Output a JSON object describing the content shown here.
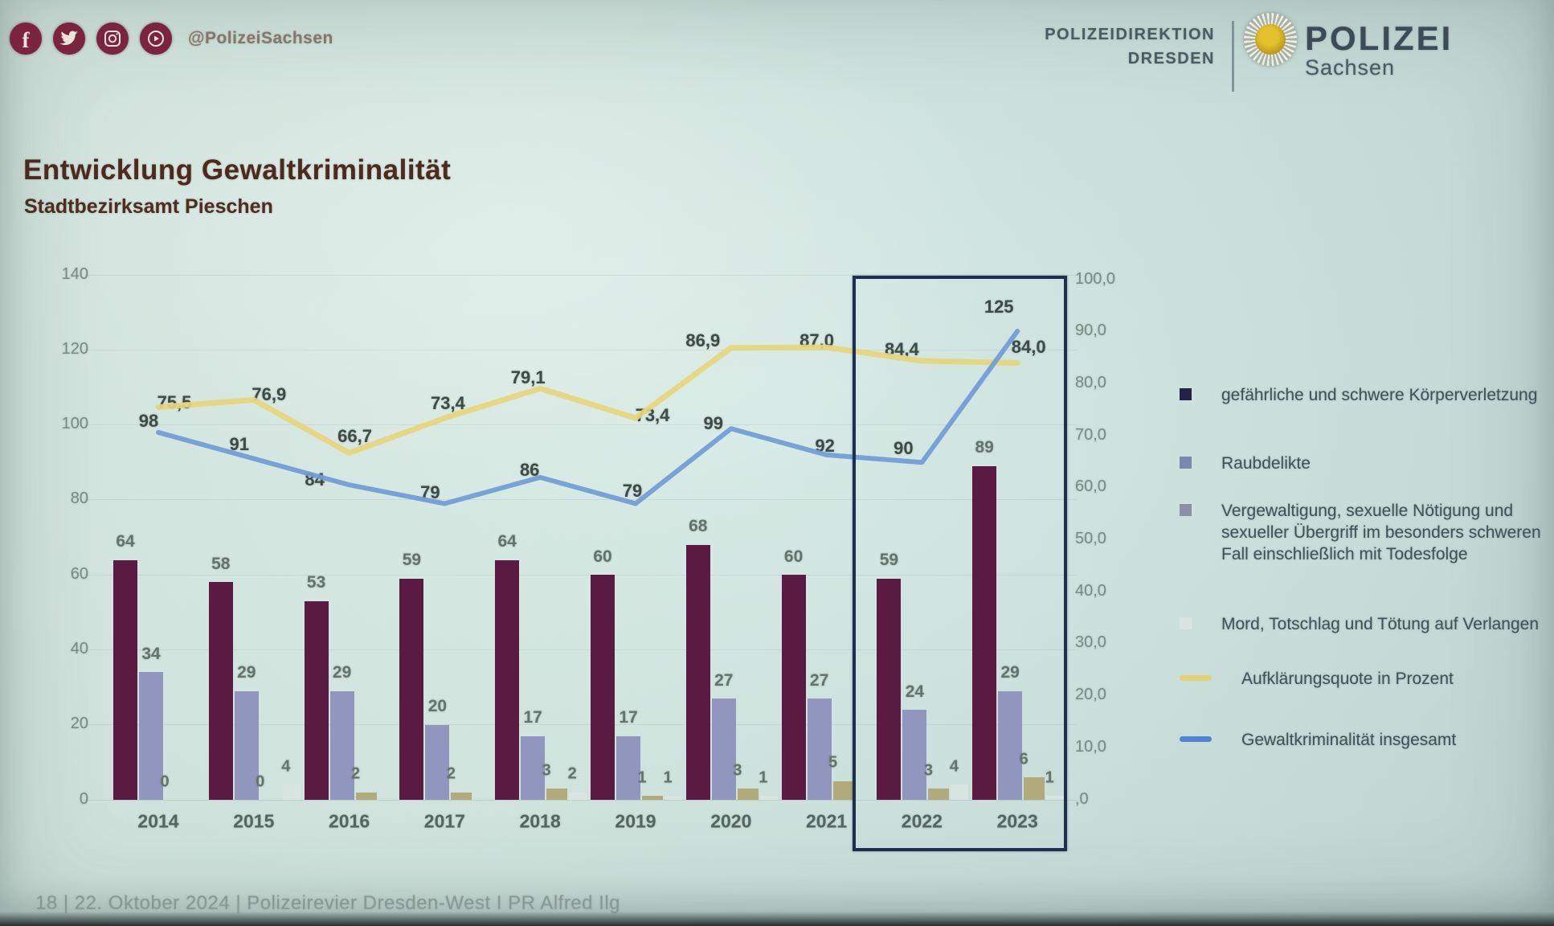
{
  "header": {
    "social_handle": "@PolizeiSachsen",
    "direktion_line1": "POLIZEIDIREKTION",
    "direktion_line2": "DRESDEN",
    "brand_name": "POLIZEI",
    "brand_region": "Sachsen"
  },
  "title": "Entwicklung Gewaltkriminalität",
  "subtitle": "Stadtbezirksamt Pieschen",
  "footer": "18  | 22. Oktober 2024 | Polizeirevier Dresden-West I PR Alfred Ilg",
  "chart_data": {
    "type": "bar+line combo",
    "categories": [
      "2014",
      "2015",
      "2016",
      "2017",
      "2018",
      "2019",
      "2020",
      "2021",
      "2022",
      "2023"
    ],
    "bar_series": [
      {
        "name": "gefährliche und schwere Körperverletzung",
        "color": "#5b1942",
        "values": [
          64,
          58,
          53,
          59,
          64,
          60,
          68,
          60,
          59,
          89
        ],
        "labels": [
          "64",
          "58",
          "53",
          "59",
          "64",
          "60",
          "68",
          "60",
          "59",
          "89"
        ]
      },
      {
        "name": "Raubdelikte",
        "color": "#9096bf",
        "values": [
          34,
          29,
          29,
          20,
          17,
          17,
          27,
          27,
          24,
          29
        ],
        "labels": [
          "34",
          "29",
          "29",
          "20",
          "17",
          "17",
          "27",
          "27",
          "24",
          "29"
        ]
      },
      {
        "name": "Vergewaltigung, sexuelle Nötigung und sexueller Übergriff im besonders schweren Fall einschließlich mit Todesfolge",
        "color": "#b2aa7b",
        "values": [
          0,
          0,
          2,
          2,
          3,
          1,
          3,
          5,
          3,
          6
        ],
        "labels": [
          "0",
          "0",
          "2",
          "2",
          "3",
          "1",
          "3",
          "5",
          "3",
          "6"
        ]
      },
      {
        "name": "Mord, Totschlag und Tötung auf Verlangen",
        "color": "#d8e5e0",
        "values": [
          0,
          4,
          0,
          0,
          2,
          1,
          1,
          0,
          4,
          1
        ],
        "labels": [
          "",
          "4",
          "",
          "",
          "2",
          "1",
          "1",
          "",
          "4",
          "1"
        ]
      }
    ],
    "line_series": [
      {
        "name": "Aufklärungsquote in Prozent",
        "axis": "right",
        "color": "#e7d57a",
        "values": [
          75.5,
          76.9,
          66.7,
          73.4,
          79.1,
          73.4,
          86.9,
          87.0,
          84.4,
          84.0
        ],
        "labels": [
          "75,5",
          "76,9",
          "66,7",
          "73,4",
          "79,1",
          "73,4",
          "86,9",
          "87,0",
          "84,4",
          "84,0"
        ]
      },
      {
        "name": "Gewaltkriminalität insgesamt",
        "axis": "left",
        "color": "#6f9cd8",
        "values": [
          98,
          91,
          84,
          79,
          86,
          79,
          99,
          92,
          90,
          125
        ],
        "labels": [
          "98",
          "91",
          "84",
          "79",
          "86",
          "79",
          "99",
          "92",
          "90",
          "125"
        ]
      }
    ],
    "axis_left": {
      "min": 0,
      "max": 140,
      "step": 20,
      "tick_labels": [
        "0",
        "20",
        "40",
        "60",
        "80",
        "100",
        "120",
        "140"
      ]
    },
    "axis_right": {
      "min": 0,
      "max": 100,
      "step": 10,
      "tick_labels": [
        "100,0",
        "90,0",
        "80,0",
        "70,0",
        "60,0",
        "50,0",
        "40,0",
        "30,0",
        "20,0",
        "10,0",
        ",0"
      ]
    },
    "grid": "faint horizontal",
    "legend_position": "right",
    "highlight": {
      "years": [
        "2022",
        "2023"
      ]
    }
  },
  "legend": {
    "items": [
      {
        "label": "gefährliche und schwere Körperverletzung",
        "swatch": "square",
        "color": "#232347"
      },
      {
        "label": "Raubdelikte",
        "swatch": "square",
        "color": "#7c86b4"
      },
      {
        "label": "Vergewaltigung, sexuelle Nötigung und sexueller Übergriff im besonders schweren Fall einschließlich mit Todesfolge",
        "swatch": "square",
        "color": "#8b90a6"
      },
      {
        "label": "Mord, Totschlag und Tötung auf Verlangen",
        "swatch": "square",
        "color": "#d7e4e0"
      },
      {
        "label": "Aufklärungsquote in Prozent",
        "swatch": "line",
        "color": "#e3d173"
      },
      {
        "label": "Gewaltkriminalität insgesamt",
        "swatch": "line",
        "color": "#4f83d6"
      }
    ]
  }
}
